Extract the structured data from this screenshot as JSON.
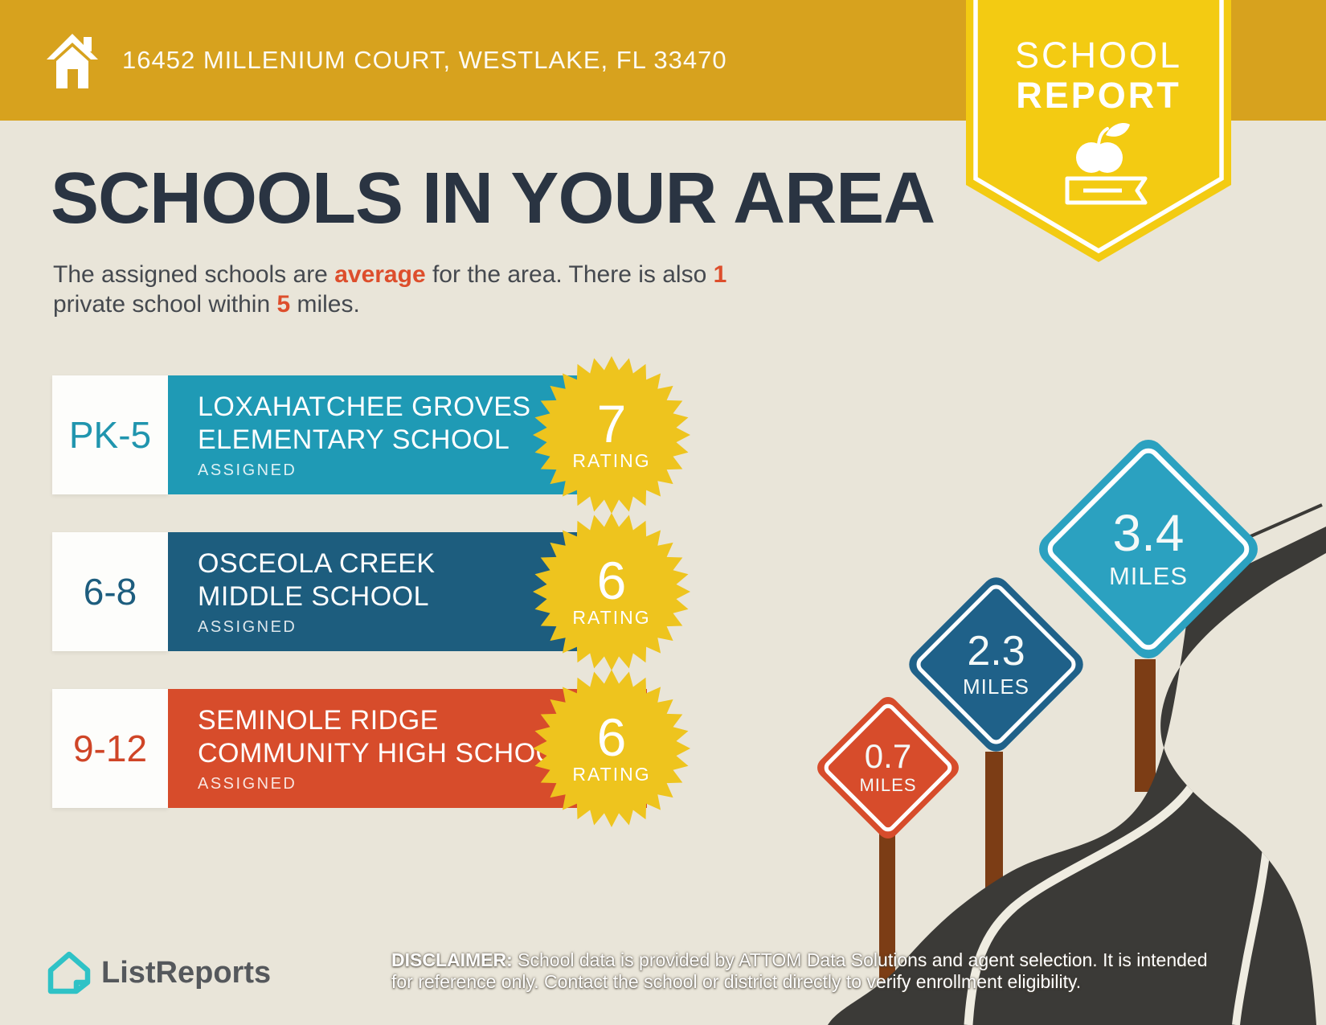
{
  "header": {
    "address": "16452 MILLENIUM COURT, WESTLAKE, FL 33470"
  },
  "badge": {
    "line1": "SCHOOL",
    "line2": "REPORT"
  },
  "title": "SCHOOLS IN YOUR AREA",
  "intro": {
    "l1a": "The assigned schools are ",
    "l1b": "average",
    "l1c": " for the area. There is also ",
    "l1d": "1",
    "l2a": "private school within ",
    "l2b": "5",
    "l2c": " miles."
  },
  "schools": [
    {
      "grades": "PK-5",
      "name_line1": "LOXAHATCHEE GROVES",
      "name_line2": "ELEMENTARY SCHOOL",
      "status": "ASSIGNED",
      "rating": "7",
      "rating_label": "RATING",
      "color": "#1f9ab5"
    },
    {
      "grades": "6-8",
      "name_line1": "OSCEOLA CREEK",
      "name_line2": "MIDDLE SCHOOL",
      "status": "ASSIGNED",
      "rating": "6",
      "rating_label": "RATING",
      "color": "#1d5d7e"
    },
    {
      "grades": "9-12",
      "name_line1": "SEMINOLE RIDGE",
      "name_line2": "COMMUNITY HIGH SCHOOL",
      "status": "ASSIGNED",
      "rating": "6",
      "rating_label": "RATING",
      "color": "#d74c2b"
    }
  ],
  "signs": [
    {
      "distance": "0.7",
      "unit": "MILES",
      "color": "#d74c2b"
    },
    {
      "distance": "2.3",
      "unit": "MILES",
      "color": "#1f6189"
    },
    {
      "distance": "3.4",
      "unit": "MILES",
      "color": "#2ba1c0"
    }
  ],
  "footer": {
    "brand": "ListReports",
    "disclaimer_label": "DISCLAIMER:",
    "disclaimer_line1_rest": " School data is provided by ATTOM Data Solutions and agent selection. It is intended",
    "disclaimer_line2": "for reference only. Contact the school or district directly to verify enrollment eligibility."
  },
  "colors": {
    "header_gold": "#d7a21e",
    "badge_yellow": "#f3cb12",
    "background": "#e9e5d9",
    "title_navy": "#2a3442",
    "accent_red": "#dd4e2c",
    "burst_yellow": "#eec41e",
    "road_dark": "#3b3a37",
    "post_brown": "#7c3d15",
    "logo_teal": "#2fc2c6"
  }
}
